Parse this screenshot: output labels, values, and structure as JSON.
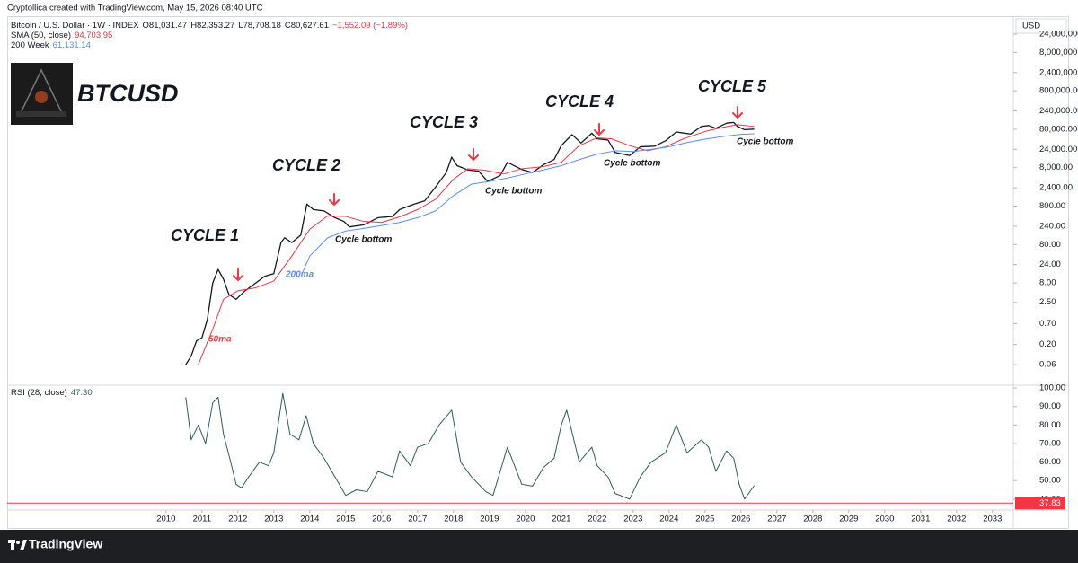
{
  "header": {
    "caption": "Cryptollica created with TradingView.com, May 15, 2026 08:40 UTC"
  },
  "footer": {
    "brand": "TradingView"
  },
  "chart_data": [
    {
      "type": "line",
      "title": "BTCUSD",
      "log_scale": true,
      "y_unit": "USD",
      "legend_title": "Bitcoin / U.S. Dollar · 1W · INDEX",
      "ohlc": [
        "O81,031.47",
        "H82,353.27",
        "L78,708.18",
        "C80,627.61",
        "−1,552.09 (−1.89%)"
      ],
      "xlim": [
        2005.58,
        2033.58
      ],
      "ylim": [
        0.0184,
        36800000
      ],
      "yticks": [
        {
          "value": 24000000,
          "label": "24,000,000.00"
        },
        {
          "value": 8000000,
          "label": "8,000,000.00"
        },
        {
          "value": 2400000,
          "label": "2,400,000.00"
        },
        {
          "value": 800000,
          "label": "800,000.00"
        },
        {
          "value": 240000,
          "label": "240,000.00"
        },
        {
          "value": 80000,
          "label": "80,000.00"
        },
        {
          "value": 24000,
          "label": "24,000.00"
        },
        {
          "value": 8000,
          "label": "8,000.00"
        },
        {
          "value": 2400,
          "label": "2,400.00"
        },
        {
          "value": 800,
          "label": "800.00"
        },
        {
          "value": 240,
          "label": "240.00"
        },
        {
          "value": 80,
          "label": "80.00"
        },
        {
          "value": 24,
          "label": "24.00"
        },
        {
          "value": 8,
          "label": "8.00"
        },
        {
          "value": 2.5,
          "label": "2.50"
        },
        {
          "value": 0.7,
          "label": "0.70"
        },
        {
          "value": 0.2,
          "label": "0.20"
        },
        {
          "value": 0.06,
          "label": "0.06"
        }
      ],
      "series": [
        {
          "name": "Bitcoin / U.S. Dollar · 1W · INDEX",
          "color": "#131722",
          "x": [
            2010.55,
            2010.7,
            2010.85,
            2011.0,
            2011.15,
            2011.3,
            2011.45,
            2011.6,
            2011.75,
            2011.95,
            2012.2,
            2012.5,
            2012.75,
            2013.0,
            2013.2,
            2013.3,
            2013.5,
            2013.75,
            2013.92,
            2014.1,
            2014.4,
            2014.7,
            2014.95,
            2015.1,
            2015.5,
            2015.9,
            2016.3,
            2016.5,
            2016.9,
            2017.2,
            2017.5,
            2017.8,
            2017.95,
            2018.1,
            2018.4,
            2018.7,
            2018.95,
            2019.3,
            2019.5,
            2019.9,
            2020.2,
            2020.5,
            2020.8,
            2021.0,
            2021.3,
            2021.55,
            2021.85,
            2022.0,
            2022.3,
            2022.5,
            2022.9,
            2023.2,
            2023.6,
            2023.9,
            2024.2,
            2024.6,
            2024.9,
            2025.1,
            2025.3,
            2025.6,
            2025.8,
            2025.9,
            2026.1,
            2026.37
          ],
          "values": [
            0.06,
            0.1,
            0.25,
            0.3,
            0.9,
            8,
            18,
            10,
            4,
            3,
            5,
            8,
            12,
            14,
            90,
            120,
            90,
            140,
            900,
            650,
            600,
            400,
            320,
            230,
            260,
            400,
            430,
            650,
            900,
            1100,
            2500,
            6000,
            15000,
            9000,
            7000,
            6500,
            3500,
            5000,
            11000,
            7200,
            6000,
            9500,
            13000,
            30000,
            58000,
            35000,
            63000,
            45000,
            42000,
            20000,
            16500,
            28000,
            29000,
            40000,
            68000,
            60000,
            95000,
            100000,
            85000,
            115000,
            120000,
            95000,
            78000,
            80627.61
          ]
        },
        {
          "name": "SMA (50, close)",
          "color": "#f23645",
          "value_label": "94,703.95",
          "x": [
            2010.9,
            2011.3,
            2011.6,
            2012.0,
            2012.5,
            2013.0,
            2013.5,
            2014.0,
            2014.5,
            2015.0,
            2015.5,
            2016.0,
            2016.5,
            2017.0,
            2017.5,
            2018.0,
            2018.4,
            2018.9,
            2019.4,
            2019.9,
            2020.5,
            2021.0,
            2021.5,
            2022.0,
            2022.4,
            2022.9,
            2023.4,
            2023.9,
            2024.4,
            2025.0,
            2025.5,
            2025.9,
            2026.37
          ],
          "values": [
            0.06,
            0.5,
            3,
            5,
            6,
            9,
            40,
            200,
            450,
            430,
            320,
            300,
            420,
            650,
            1200,
            4000,
            7500,
            6800,
            5500,
            7500,
            8500,
            11000,
            30000,
            48000,
            45000,
            30000,
            22000,
            28000,
            45000,
            70000,
            90000,
            105000,
            94703.95
          ]
        },
        {
          "name": "200 Week",
          "color": "#5b8ef0",
          "value_label": "61,131.14",
          "x": [
            2013.8,
            2014.0,
            2014.5,
            2015.0,
            2015.5,
            2016.0,
            2016.5,
            2017.0,
            2017.5,
            2018.0,
            2018.5,
            2019.0,
            2019.5,
            2020.0,
            2020.5,
            2021.0,
            2021.5,
            2022.0,
            2022.5,
            2023.0,
            2023.5,
            2024.0,
            2024.5,
            2025.0,
            2025.5,
            2026.0,
            2026.37
          ],
          "values": [
            15,
            40,
            120,
            180,
            210,
            250,
            300,
            400,
            600,
            1500,
            3000,
            3500,
            4300,
            5500,
            7000,
            9000,
            13000,
            18000,
            22000,
            21000,
            24000,
            28000,
            36000,
            44000,
            52000,
            59000,
            61131.14
          ]
        }
      ],
      "annotations": [
        "CYCLE 1",
        "CYCLE 2",
        "CYCLE 3",
        "CYCLE 4",
        "CYCLE 5",
        "Cycle bottom",
        "Cycle bottom",
        "Cycle bottom",
        "Cycle bottom",
        "50ma",
        "200ma"
      ]
    },
    {
      "type": "line",
      "xlim": [
        2005.58,
        2033.58
      ],
      "xticks": [
        2010,
        2011,
        2012,
        2013,
        2014,
        2015,
        2016,
        2017,
        2018,
        2019,
        2020,
        2021,
        2022,
        2023,
        2024,
        2025,
        2026,
        2027,
        2028,
        2029,
        2030,
        2031,
        2032,
        2033
      ],
      "ylim": [
        37,
        101
      ],
      "yticks": [
        {
          "value": 100,
          "label": "100.00"
        },
        {
          "value": 90,
          "label": "90.00"
        },
        {
          "value": 80,
          "label": "80.00"
        },
        {
          "value": 70,
          "label": "70.00"
        },
        {
          "value": 60,
          "label": "60.00"
        },
        {
          "value": 50,
          "label": "50.00"
        },
        {
          "value": 40,
          "label": "40.00"
        }
      ],
      "level": {
        "value": 37.83,
        "label": "37.83",
        "color": "#f23645"
      },
      "series": [
        {
          "name": "RSI (28, close)",
          "color": "#2c5d5b",
          "value_label": "47.30",
          "x": [
            2010.55,
            2010.7,
            2010.9,
            2011.1,
            2011.3,
            2011.45,
            2011.6,
            2011.8,
            2011.95,
            2012.1,
            2012.3,
            2012.6,
            2012.85,
            2013.0,
            2013.25,
            2013.45,
            2013.7,
            2013.9,
            2014.1,
            2014.4,
            2014.7,
            2015.0,
            2015.3,
            2015.6,
            2015.9,
            2016.3,
            2016.5,
            2016.8,
            2017.0,
            2017.3,
            2017.6,
            2017.95,
            2018.2,
            2018.5,
            2018.9,
            2019.1,
            2019.5,
            2019.9,
            2020.2,
            2020.5,
            2020.8,
            2021.0,
            2021.15,
            2021.5,
            2021.85,
            2022.0,
            2022.3,
            2022.5,
            2022.9,
            2023.2,
            2023.5,
            2023.9,
            2024.2,
            2024.5,
            2024.9,
            2025.1,
            2025.3,
            2025.6,
            2025.8,
            2025.95,
            2026.1,
            2026.37
          ],
          "values": [
            95,
            72,
            80,
            70,
            92,
            95,
            75,
            60,
            48,
            46,
            52,
            60,
            58,
            65,
            97,
            75,
            72,
            85,
            70,
            62,
            52,
            42,
            45,
            44,
            55,
            52,
            66,
            58,
            68,
            70,
            80,
            88,
            60,
            52,
            44,
            42,
            68,
            48,
            47,
            57,
            62,
            80,
            88,
            60,
            68,
            58,
            52,
            43,
            40,
            52,
            60,
            65,
            80,
            65,
            72,
            68,
            55,
            66,
            62,
            48,
            40,
            47.3
          ]
        }
      ]
    }
  ]
}
